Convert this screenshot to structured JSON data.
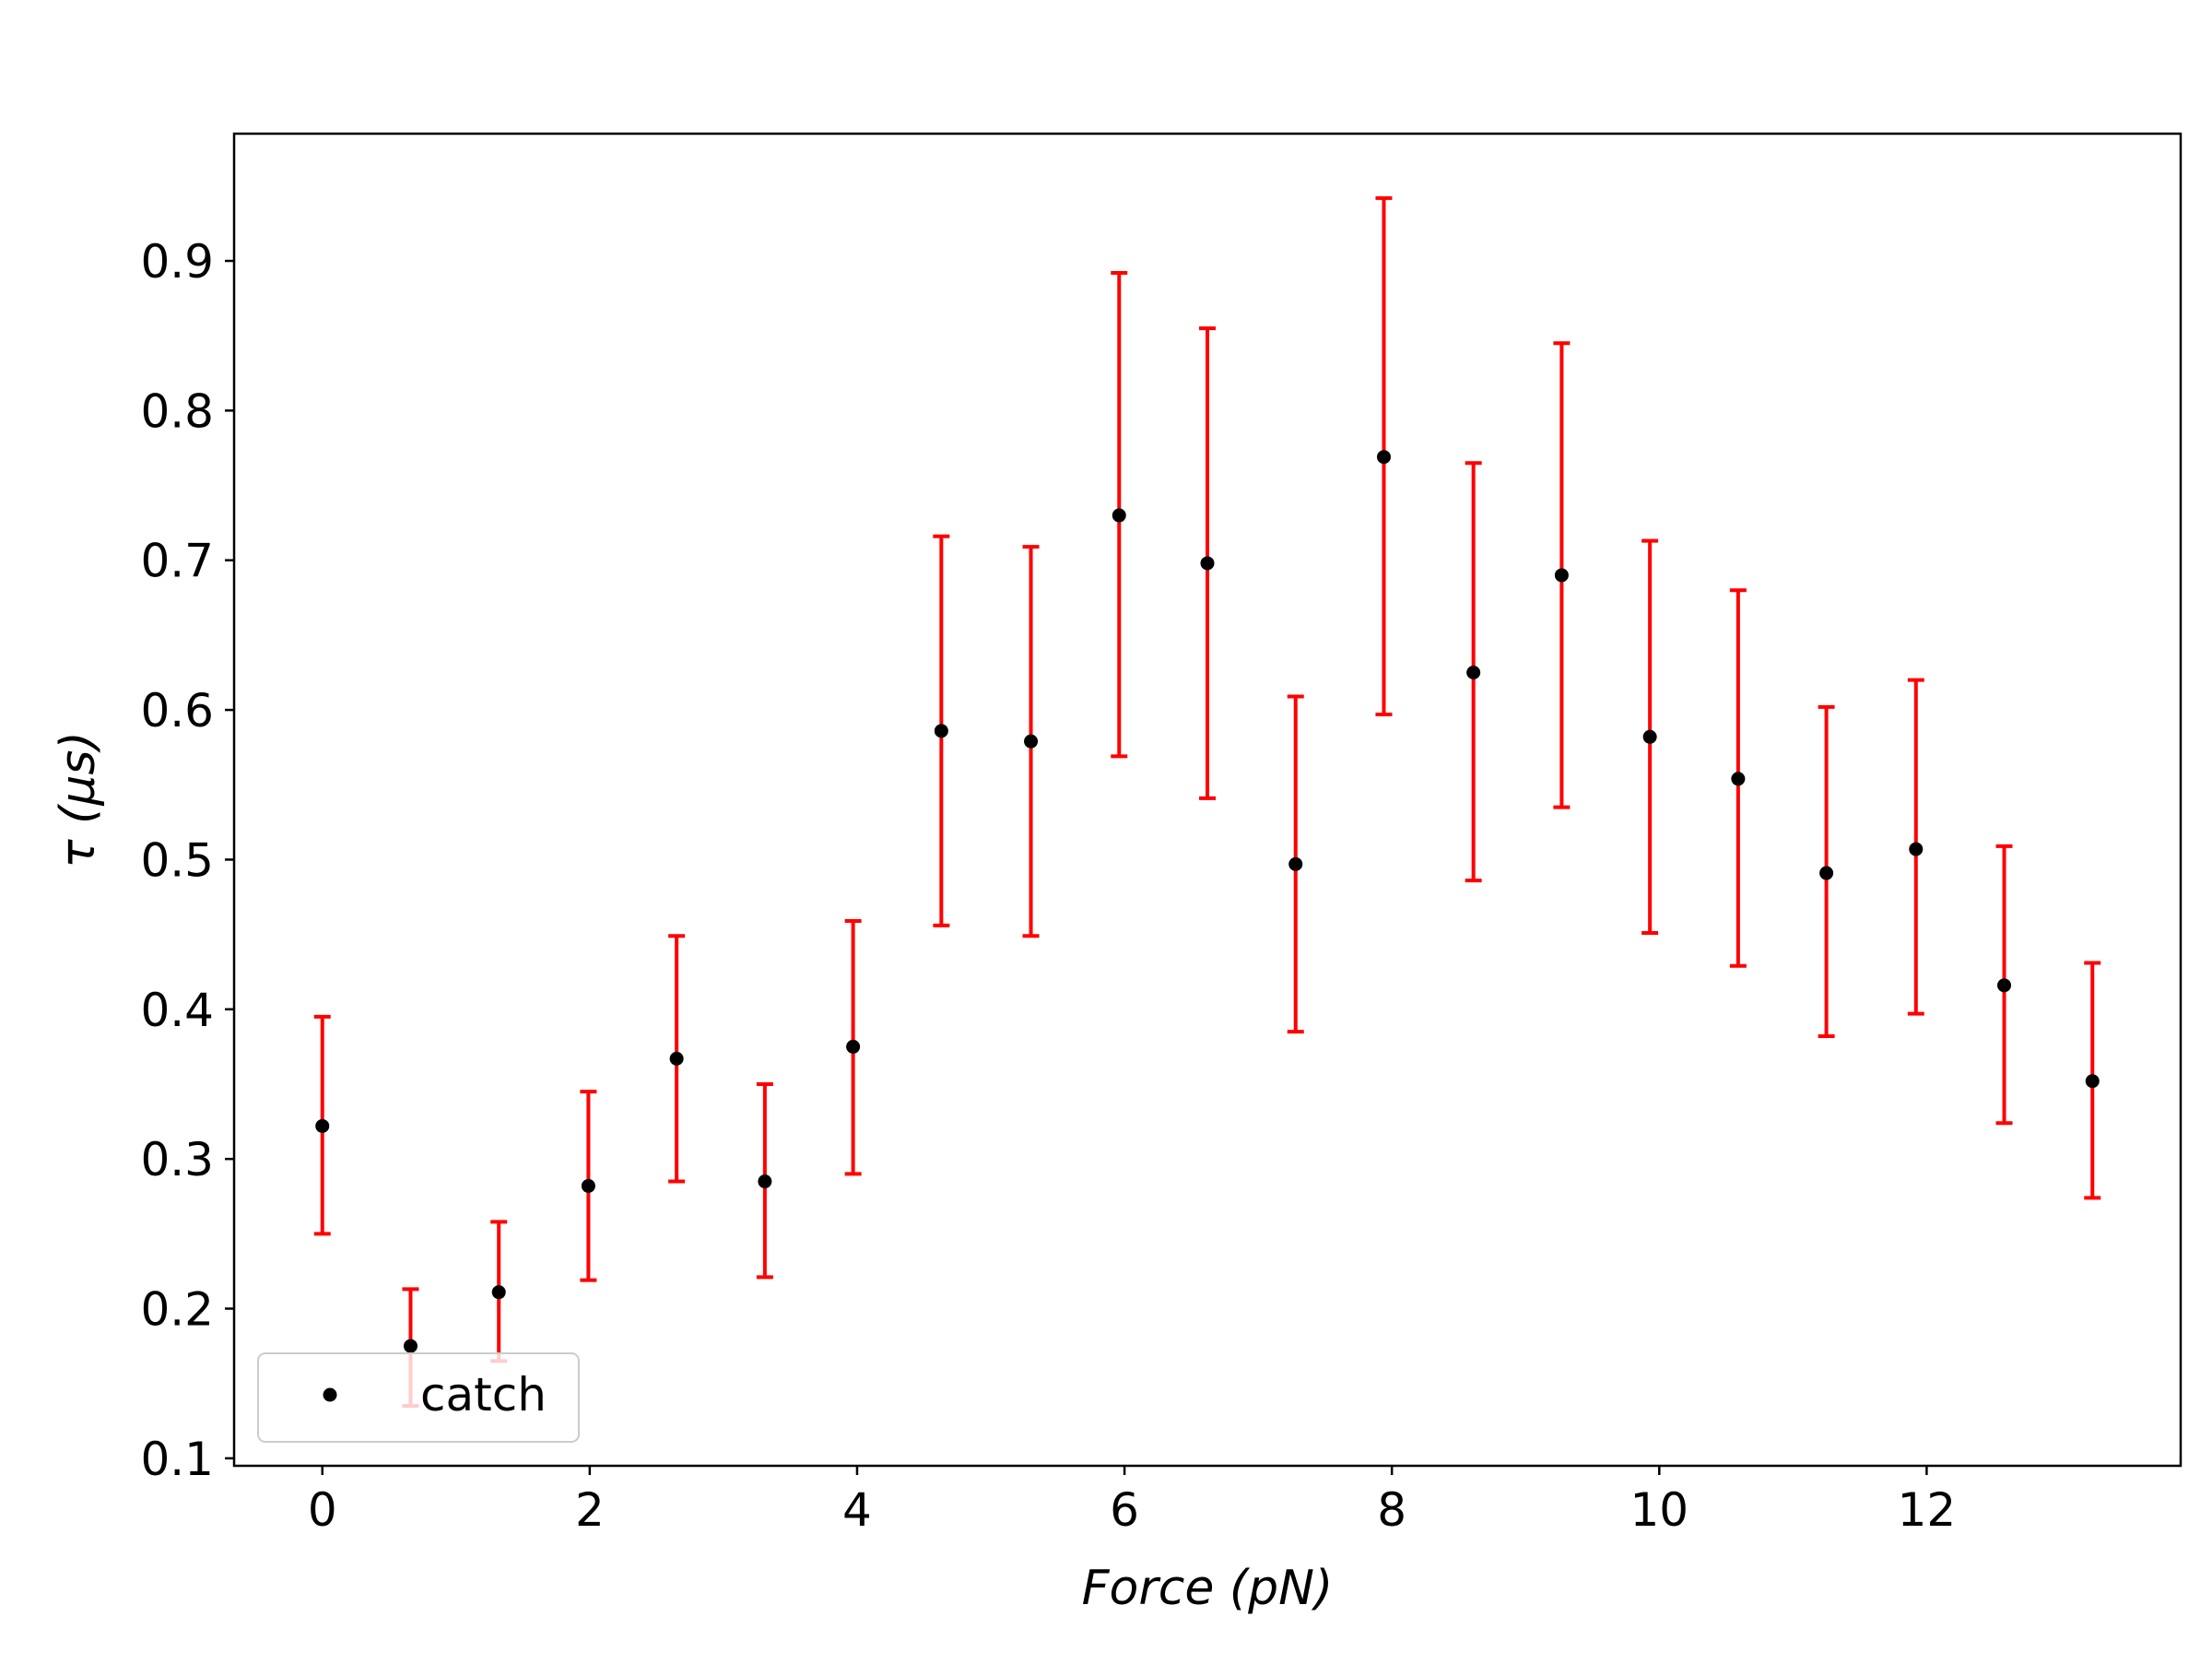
{
  "chart_data": {
    "type": "scatter",
    "title": "",
    "xlabel": "Force (pN)",
    "ylabel": "τ (μs)",
    "xlim": [
      -0.66,
      13.9
    ],
    "ylim": [
      0.095,
      0.985
    ],
    "xticks": [
      0,
      2,
      4,
      6,
      8,
      10,
      12
    ],
    "yticks": [
      0.1,
      0.2,
      0.3,
      0.4,
      0.5,
      0.6,
      0.7,
      0.8,
      0.9
    ],
    "grid": false,
    "legend_position": "lower-left",
    "series": [
      {
        "name": "catch",
        "marker_color": "#000000",
        "errorbar_color": "#ff0000",
        "x": [
          0.0,
          0.66,
          1.32,
          1.99,
          2.65,
          3.31,
          3.97,
          4.63,
          5.3,
          5.96,
          6.62,
          7.28,
          7.94,
          8.61,
          9.27,
          9.93,
          10.59,
          11.25,
          11.92,
          12.58,
          13.24
        ],
        "y": [
          0.322,
          0.175,
          0.211,
          0.282,
          0.367,
          0.285,
          0.375,
          0.586,
          0.579,
          0.73,
          0.698,
          0.497,
          0.769,
          0.625,
          0.69,
          0.582,
          0.554,
          0.491,
          0.507,
          0.416,
          0.352
        ],
        "y_lower": [
          0.25,
          0.135,
          0.165,
          0.219,
          0.285,
          0.221,
          0.29,
          0.456,
          0.449,
          0.569,
          0.541,
          0.385,
          0.597,
          0.486,
          0.535,
          0.451,
          0.429,
          0.382,
          0.397,
          0.324,
          0.274
        ],
        "y_upper": [
          0.395,
          0.213,
          0.258,
          0.345,
          0.449,
          0.35,
          0.459,
          0.716,
          0.709,
          0.892,
          0.855,
          0.609,
          0.942,
          0.765,
          0.845,
          0.713,
          0.68,
          0.602,
          0.62,
          0.509,
          0.431
        ]
      }
    ]
  }
}
